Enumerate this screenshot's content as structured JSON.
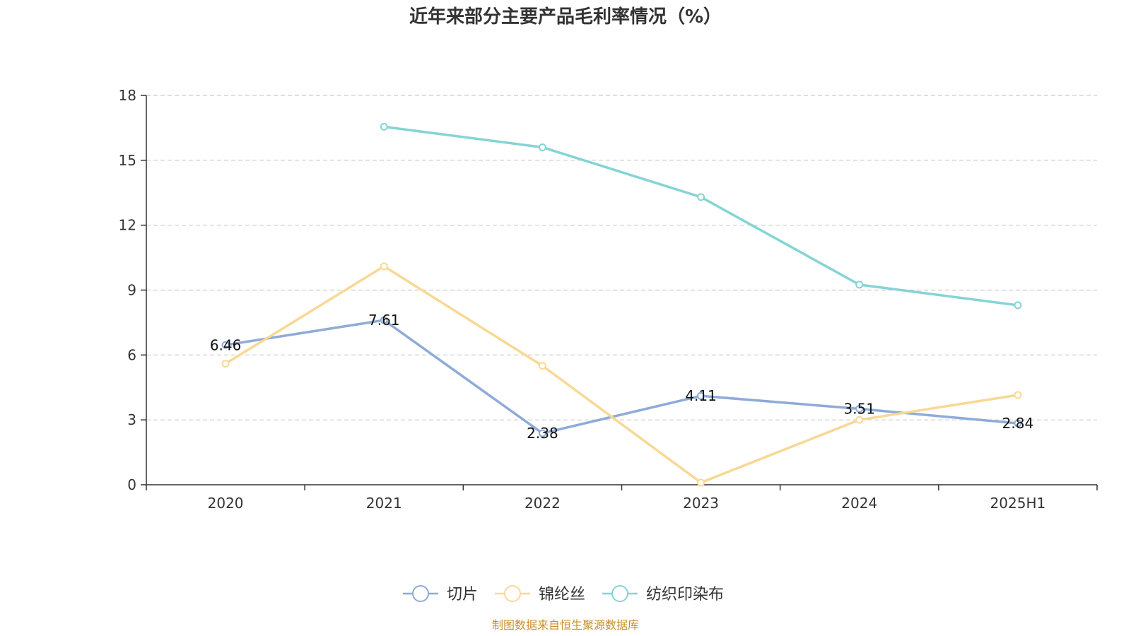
{
  "chart_data": {
    "type": "line",
    "title": "近年来部分主要产品毛利率情况（%）",
    "categories": [
      "2020",
      "2021",
      "2022",
      "2023",
      "2024",
      "2025H1"
    ],
    "ylim": [
      0,
      18
    ],
    "yticks": [
      0,
      3,
      6,
      9,
      12,
      15,
      18
    ],
    "grid": true,
    "legend_position": "bottom",
    "series": [
      {
        "name": "切片",
        "color": "#8eabd8",
        "values": [
          6.46,
          7.61,
          2.38,
          4.11,
          3.51,
          2.84
        ],
        "labels": [
          "6.46",
          "7.61",
          "2.38",
          "4.11",
          "3.51",
          "2.84"
        ]
      },
      {
        "name": "锦纶丝",
        "color": "#f9d894",
        "values": [
          5.6,
          10.1,
          5.5,
          0.1,
          3.0,
          4.15
        ]
      },
      {
        "name": "纺织印染布",
        "color": "#85d4d4",
        "values": [
          null,
          16.55,
          15.6,
          13.3,
          9.25,
          8.3
        ]
      }
    ]
  },
  "source": "制图数据来自恒生聚源数据库"
}
